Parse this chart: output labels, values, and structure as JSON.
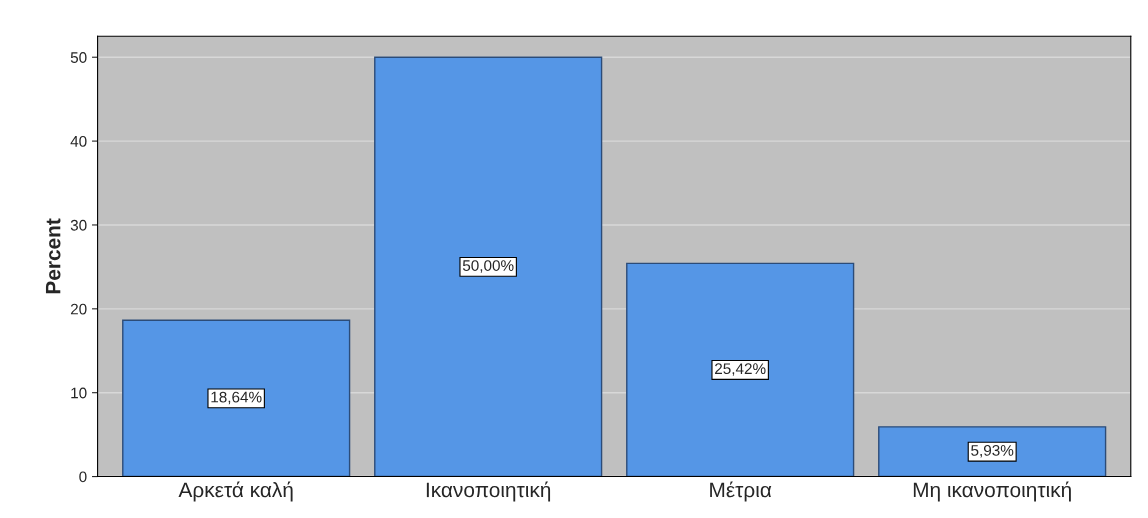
{
  "chart_data": {
    "type": "bar",
    "ylabel": "Percent",
    "categories": [
      "Αρκετά καλή",
      "Ικανοποιητική",
      "Μέτρια",
      "Μη ικανοποιητική"
    ],
    "values": [
      18.64,
      50.0,
      25.42,
      5.93
    ],
    "value_labels": [
      "18,64%",
      "50,00%",
      "25,42%",
      "5,93%"
    ],
    "color": "#5596e6",
    "ylim": [
      0,
      52.5
    ],
    "yticks": [
      0,
      10,
      20,
      30,
      40,
      50
    ],
    "grid": "y"
  }
}
